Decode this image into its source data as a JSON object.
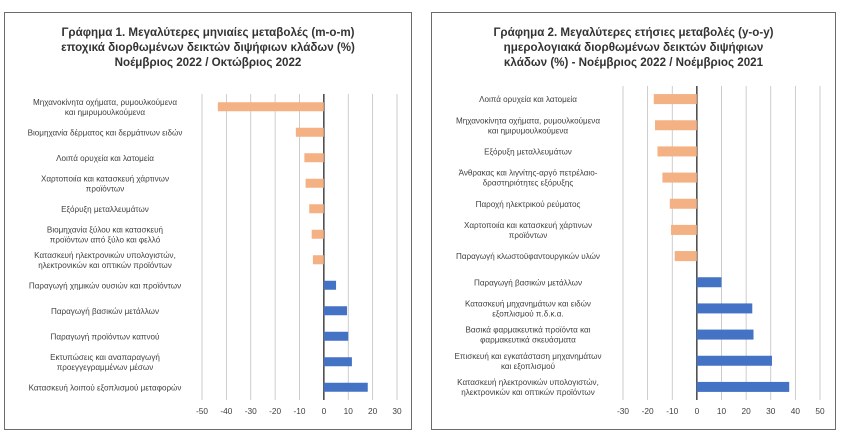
{
  "chart_data": [
    {
      "type": "bar",
      "orientation": "horizontal",
      "title_lines": [
        "Γράφημα 1. Μεγαλύτερες μηνιαίες μεταβολές (m-o-m)",
        "εποχικά διορθωμένων δεικτών διψήφιων κλάδων (%)",
        "Νοέμβριος 2022 / Οκτώβριος 2022"
      ],
      "categories": [
        [
          "Μηχανοκίνητα οχήματα, ρυμουλκούμενα",
          "και ημιρυμουλκούμενα"
        ],
        [
          "Βιομηχανία δέρματος και δερμάτινων ειδών"
        ],
        [
          "Λοιπά ορυχεία και λατομεία"
        ],
        [
          "Χαρτοποιία και κατασκευή χάρτινων",
          "προϊόντων"
        ],
        [
          "Εξόρυξη μεταλλευμάτων"
        ],
        [
          "Βιομηχανία ξύλου και κατασκευή",
          "προϊόντων από ξύλο και φελλό"
        ],
        [
          "Κατασκευή ηλεκτρονικών υπολογιστών,",
          "ηλεκτρονικών και οπτικών προϊόντων"
        ],
        [
          "Παραγωγή χημικών ουσιών και προϊόντων"
        ],
        [
          "Παραγωγή βασικών μετάλλων"
        ],
        [
          "Παραγωγή προϊόντων καπνού"
        ],
        [
          "Εκτυπώσεις και αναπαραγωγή",
          "προεγγεγραμμένων μέσων"
        ],
        [
          "Κατασκευή λοιπού εξοπλισμού μεταφορών"
        ]
      ],
      "values": [
        -43.5,
        -11.5,
        -8,
        -7.5,
        -6,
        -5,
        -4.5,
        5,
        9.5,
        10,
        11.5,
        18
      ],
      "xlim": [
        -50,
        30
      ],
      "xticks": [
        "-50",
        "-40",
        "-30",
        "-20",
        "-10",
        "0",
        "10",
        "20",
        "30"
      ],
      "grid": true,
      "negative_color": "#f4b183",
      "positive_color": "#4472c4"
    },
    {
      "type": "bar",
      "orientation": "horizontal",
      "title_lines": [
        "Γράφημα 2. Μεγαλύτερες ετήσιες μεταβολές (y-o-y)",
        "ημερολογιακά διορθωμένων δεικτών διψήφιων",
        "κλάδων (%) - Νοέμβριος 2022 / Νοέμβριος 2021"
      ],
      "categories": [
        [
          "Λοιπά ορυχεία και λατομεία"
        ],
        [
          "Μηχανοκίνητα οχήματα, ρυμουλκούμενα",
          "και ημιρυμουλκούμενα"
        ],
        [
          "Εξόρυξη μεταλλευμάτων"
        ],
        [
          "Άνθρακας και λιγνίτης-αργό πετρέλαιο-",
          "δραστηριότητες εξόρυξης"
        ],
        [
          "Παροχή ηλεκτρικού ρεύματος"
        ],
        [
          "Χαρτοποιία και κατασκευή χάρτινων",
          "προϊόντων"
        ],
        [
          "Παραγωγή κλωστοϋφαντουργικών υλών"
        ],
        [
          "Παραγωγή βασικών μετάλλων"
        ],
        [
          "Κατασκευή μηχανημάτων και ειδών",
          "εξοπλισμού π.δ.κ.α."
        ],
        [
          "Βασικά φαρμακευτικά προϊόντα και",
          "φαρμακευτικά σκευάσματα"
        ],
        [
          "Επισκευή και εγκατάσταση μηχανημάτων",
          "και εξοπλισμού"
        ],
        [
          "Κατασκευή ηλεκτρονικών υπολογιστών,",
          "ηλεκτρονικών και οπτικών προϊόντων"
        ]
      ],
      "values": [
        -17.5,
        -17,
        -16,
        -14,
        -11,
        -10.5,
        -9,
        10,
        22.5,
        23,
        30.5,
        37.5
      ],
      "xlim": [
        -30,
        50
      ],
      "xticks": [
        "-30",
        "-20",
        "-10",
        "0",
        "10",
        "20",
        "30",
        "40",
        "50"
      ],
      "grid": true,
      "negative_color": "#f4b183",
      "positive_color": "#4472c4"
    }
  ]
}
